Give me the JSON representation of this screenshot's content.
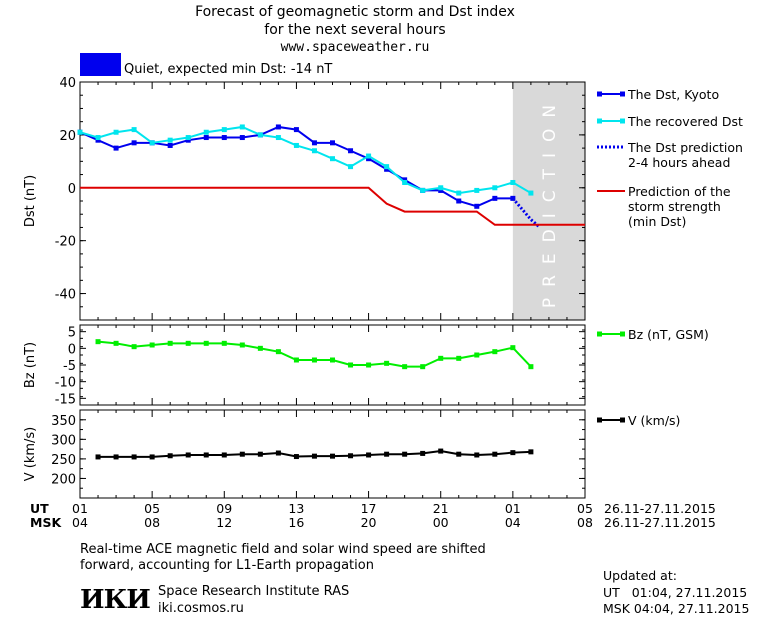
{
  "header": {
    "title_line1": "Forecast of geomagnetic storm and Dst index",
    "title_line2": "for the next several hours",
    "title_line3": "www.spaceweather.ru",
    "status_color": "#0000ee",
    "status_text": "Quiet, expected min Dst: -14 nT"
  },
  "chart_data": [
    {
      "type": "line",
      "ylabel": "Dst (nT)",
      "ylim": [
        -50,
        40
      ],
      "yticks": [
        40,
        20,
        0,
        -20,
        -40
      ],
      "xlim": [
        0,
        28
      ],
      "prediction_zone": {
        "x_start": 24,
        "x_end": 28,
        "label": "PREDICTION"
      },
      "series": [
        {
          "name": "The Dst, Kyoto",
          "color": "#0000ee",
          "marker": "square",
          "x": [
            0,
            1,
            2,
            3,
            4,
            5,
            6,
            7,
            8,
            9,
            10,
            11,
            12,
            13,
            14,
            15,
            16,
            17,
            18,
            19,
            20,
            21,
            22,
            23,
            24
          ],
          "values": [
            21,
            18,
            15,
            17,
            17,
            16,
            18,
            19,
            19,
            19,
            20,
            23,
            22,
            17,
            17,
            14,
            11,
            7,
            3,
            -1,
            -1,
            -5,
            -7,
            -4,
            -4
          ]
        },
        {
          "name": "The recovered Dst",
          "color": "#00e5ee",
          "marker": "square",
          "x": [
            0,
            1,
            2,
            3,
            4,
            5,
            6,
            7,
            8,
            9,
            10,
            11,
            12,
            13,
            14,
            15,
            16,
            17,
            18,
            19,
            20,
            21,
            22,
            23,
            24,
            25
          ],
          "values": [
            21,
            19,
            21,
            22,
            17,
            18,
            19,
            21,
            22,
            23,
            20,
            19,
            16,
            14,
            11,
            8,
            12,
            8,
            2,
            -1,
            0,
            -2,
            -1,
            0,
            2,
            -2
          ]
        },
        {
          "name": "The Dst prediction 2-4 hours ahead",
          "color": "#0000ee",
          "style": "dotted",
          "x": [
            24,
            24.5,
            25,
            25.5
          ],
          "values": [
            -4,
            -8,
            -12,
            -15
          ]
        },
        {
          "name": "Prediction of the storm strength (min Dst)",
          "color": "#dd0000",
          "x": [
            0,
            16,
            17,
            18,
            22,
            23,
            28
          ],
          "values": [
            0,
            0,
            -6,
            -9,
            -9,
            -14,
            -14
          ]
        }
      ],
      "legend": [
        {
          "label": "The Dst, Kyoto",
          "color": "#0000ee",
          "style": "marker"
        },
        {
          "label": "The recovered Dst",
          "color": "#00e5ee",
          "style": "marker"
        },
        {
          "label": "The Dst prediction",
          "label2": "2-4 hours ahead",
          "color": "#0000ee",
          "style": "dotted"
        },
        {
          "label": "Prediction of the",
          "label2": "storm strength",
          "label3": "(min Dst)",
          "color": "#dd0000",
          "style": "line"
        }
      ]
    },
    {
      "type": "line",
      "ylabel": "Bz (nT)",
      "ylim": [
        -17,
        7
      ],
      "yticks": [
        5,
        0,
        -5,
        -10,
        -15
      ],
      "xlim": [
        0,
        28
      ],
      "series": [
        {
          "name": "Bz (nT, GSM)",
          "color": "#00ee00",
          "marker": "square",
          "x": [
            1,
            2,
            3,
            4,
            5,
            6,
            7,
            8,
            9,
            10,
            11,
            12,
            13,
            14,
            15,
            16,
            17,
            18,
            19,
            20,
            21,
            22,
            23,
            24,
            25
          ],
          "values": [
            2,
            1.5,
            0.5,
            1,
            1.5,
            1.5,
            1.5,
            1.5,
            1,
            0,
            -1,
            -3.5,
            -3.5,
            -3.5,
            -5,
            -5,
            -4.5,
            -5.5,
            -5.5,
            -3,
            -3,
            -2,
            -1,
            0.2,
            -5.5
          ]
        }
      ]
    },
    {
      "type": "line",
      "ylabel": "V (km/s)",
      "ylim": [
        150,
        375
      ],
      "yticks": [
        350,
        300,
        250,
        200
      ],
      "xlim": [
        0,
        28
      ],
      "series": [
        {
          "name": "V (km/s)",
          "color": "#000000",
          "marker": "square",
          "x": [
            1,
            2,
            3,
            4,
            5,
            6,
            7,
            8,
            9,
            10,
            11,
            12,
            13,
            14,
            15,
            16,
            17,
            18,
            19,
            20,
            21,
            22,
            23,
            24,
            25
          ],
          "values": [
            255,
            255,
            255,
            255,
            258,
            260,
            260,
            260,
            262,
            262,
            265,
            256,
            257,
            257,
            258,
            260,
            262,
            262,
            264,
            270,
            262,
            260,
            262,
            266,
            268
          ]
        }
      ]
    }
  ],
  "time_axis": {
    "ut_label": "UT",
    "msk_label": "MSK",
    "ut_ticks": [
      "01",
      "05",
      "09",
      "13",
      "17",
      "21",
      "01",
      "05"
    ],
    "msk_ticks": [
      "04",
      "08",
      "12",
      "16",
      "20",
      "00",
      "04",
      "08"
    ],
    "date_range_ut": "26.11-27.11.2015",
    "date_range_msk": "26.11-27.11.2015"
  },
  "footer": {
    "note_line1": "Real-time ACE magnetic field and solar wind speed are shifted",
    "note_line2": "forward, accounting for L1-Earth propagation",
    "logo": "ИКИ",
    "institute": "Space Research Institute RAS",
    "site": "iki.cosmos.ru",
    "updated_label": "Updated at:",
    "updated_ut": "UT   01:04, 27.11.2015",
    "updated_msk": "MSK 04:04, 27.11.2015"
  }
}
